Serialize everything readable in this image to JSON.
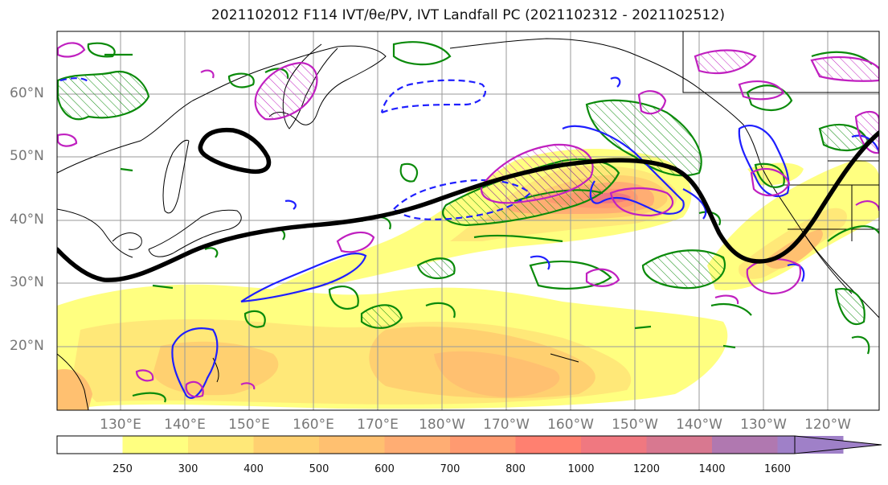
{
  "title": "2021102012 F114 IVT/θe/PV, IVT Landfall PC (2021102312 - 2021102512)",
  "map": {
    "projection": "PlateCarree",
    "region": "North Pacific",
    "lon_range": [
      120,
      -110
    ],
    "lat_range": [
      10,
      70
    ],
    "gridlines": true,
    "coastlines": true,
    "filled_field": "IVT",
    "contours": [
      {
        "name": "IVT landfall principal component",
        "color": "#000000",
        "style": "solid-thick"
      },
      {
        "name": "theta-e",
        "color": "#1f1fff",
        "style": "solid and dashed"
      },
      {
        "name": "PV",
        "color": "#0a8a0a",
        "style": "solid with hatching"
      },
      {
        "name": "PV (high)",
        "color": "#c020c0",
        "style": "solid with hatching"
      }
    ]
  },
  "lat_labels": [
    "60°N",
    "50°N",
    "40°N",
    "30°N",
    "20°N"
  ],
  "lon_labels": [
    "130°E",
    "140°E",
    "150°E",
    "160°E",
    "170°E",
    "180°W",
    "170°W",
    "160°W",
    "150°W",
    "140°W",
    "130°W",
    "120°W"
  ],
  "colorbar": {
    "labels": [
      "250",
      "300",
      "400",
      "500",
      "600",
      "700",
      "800",
      "1000",
      "1200",
      "1400",
      "1600"
    ],
    "colors": [
      "#ffffff",
      "#ffff80",
      "#ffe878",
      "#ffd070",
      "#ffc070",
      "#ffad73",
      "#ff9a70",
      "#ff8070",
      "#f07880",
      "#d87890",
      "#b078b0",
      "#9f80c8"
    ],
    "extend": "max"
  }
}
